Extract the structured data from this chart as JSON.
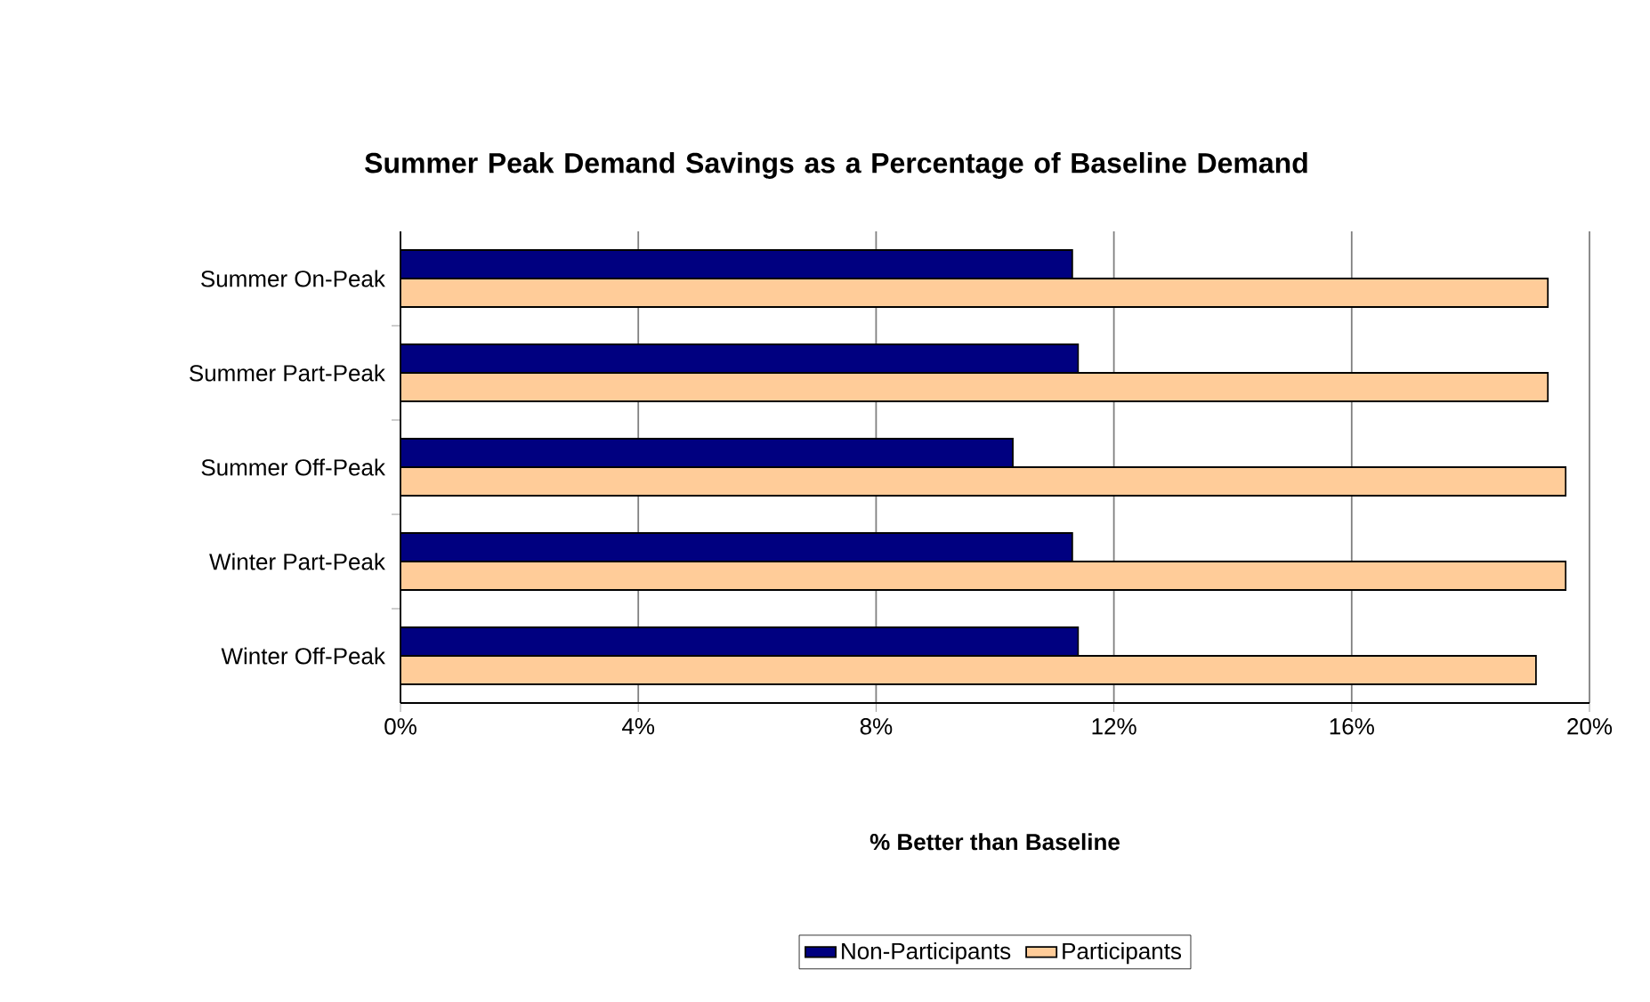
{
  "chart_data": {
    "type": "bar",
    "orientation": "horizontal",
    "title": "Summer Peak Demand Savings as a Percentage of Baseline Demand",
    "xlabel": "% Better than Baseline",
    "categories": [
      "Summer On-Peak",
      "Summer Part-Peak",
      "Summer Off-Peak",
      "Winter Part-Peak",
      "Winter Off-Peak"
    ],
    "series": [
      {
        "name": "Non-Participants",
        "color": "#000080",
        "values": [
          11.3,
          11.4,
          10.3,
          11.3,
          11.4
        ]
      },
      {
        "name": "Participants",
        "color": "#ffcc99",
        "values": [
          19.3,
          19.3,
          19.6,
          19.6,
          19.1
        ]
      }
    ],
    "xlim": [
      0,
      20
    ],
    "xticks": [
      {
        "value": 0,
        "label": "0%"
      },
      {
        "value": 4,
        "label": "4%"
      },
      {
        "value": 8,
        "label": "8%"
      },
      {
        "value": 12,
        "label": "12%"
      },
      {
        "value": 16,
        "label": "16%"
      },
      {
        "value": 20,
        "label": "20%"
      }
    ],
    "grid": "x",
    "legend": "bottom"
  }
}
